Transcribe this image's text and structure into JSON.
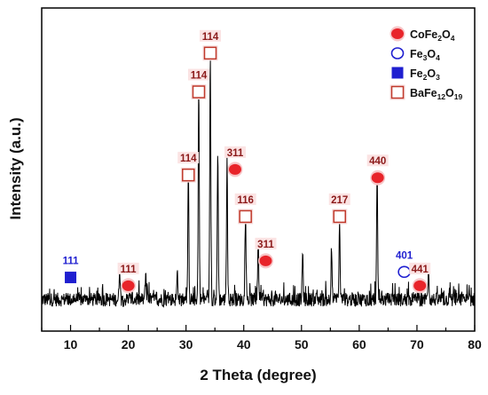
{
  "chart_data": {
    "type": "line",
    "title": "",
    "xlabel": "2 Theta (degree)",
    "ylabel": "Intensity (a.u.)",
    "xlim": [
      5,
      80
    ],
    "x_ticks": [
      10,
      20,
      30,
      40,
      50,
      60,
      70,
      80
    ],
    "y_ticks_labeled": false,
    "grid": false,
    "line_color": "#000000",
    "marker_colors": {
      "CoFe2O4": "#e8242a",
      "Fe3O4": "#1f1fd0",
      "Fe2O3": "#1f1fd0",
      "BaFe12O19": "#c0392b"
    },
    "peaks_relative_intensity": [
      {
        "x": 18.5,
        "y": 0.12
      },
      {
        "x": 23.0,
        "y": 0.09
      },
      {
        "x": 28.5,
        "y": 0.1
      },
      {
        "x": 30.4,
        "y": 0.45
      },
      {
        "x": 32.2,
        "y": 0.77
      },
      {
        "x": 34.2,
        "y": 0.88
      },
      {
        "x": 35.5,
        "y": 0.53
      },
      {
        "x": 37.1,
        "y": 0.5
      },
      {
        "x": 40.3,
        "y": 0.3
      },
      {
        "x": 42.5,
        "y": 0.2
      },
      {
        "x": 50.2,
        "y": 0.17
      },
      {
        "x": 55.2,
        "y": 0.2
      },
      {
        "x": 56.6,
        "y": 0.27
      },
      {
        "x": 63.1,
        "y": 0.45
      },
      {
        "x": 72.0,
        "y": 0.12
      }
    ],
    "annotations": [
      {
        "x": 10.0,
        "y": 0.12,
        "label": "111",
        "phase": "Fe2O3"
      },
      {
        "x": 20.0,
        "y": 0.09,
        "label": "111",
        "phase": "CoFe2O4"
      },
      {
        "x": 30.4,
        "y": 0.49,
        "label": "114",
        "phase": "BaFe12O19"
      },
      {
        "x": 32.2,
        "y": 0.79,
        "label": "114",
        "phase": "BaFe12O19"
      },
      {
        "x": 34.2,
        "y": 0.93,
        "label": "114",
        "phase": "BaFe12O19"
      },
      {
        "x": 38.5,
        "y": 0.51,
        "label": "311",
        "phase": "CoFe2O4"
      },
      {
        "x": 40.3,
        "y": 0.34,
        "label": "116",
        "phase": "BaFe12O19"
      },
      {
        "x": 43.8,
        "y": 0.18,
        "label": "311",
        "phase": "CoFe2O4"
      },
      {
        "x": 56.6,
        "y": 0.34,
        "label": "217",
        "phase": "BaFe12O19"
      },
      {
        "x": 63.2,
        "y": 0.48,
        "label": "440",
        "phase": "CoFe2O4"
      },
      {
        "x": 67.8,
        "y": 0.14,
        "label": "401",
        "phase": "Fe3O4"
      },
      {
        "x": 70.5,
        "y": 0.09,
        "label": "441",
        "phase": "CoFe2O4"
      }
    ],
    "legend": {
      "placement": "top-right",
      "items": [
        {
          "phase": "CoFe2O4",
          "parts": [
            {
              "t": "CoFe",
              "sub": false
            },
            {
              "t": "2",
              "sub": true
            },
            {
              "t": "O",
              "sub": false
            },
            {
              "t": "4",
              "sub": true
            }
          ],
          "marker": "filled-circle"
        },
        {
          "phase": "Fe3O4",
          "parts": [
            {
              "t": "Fe",
              "sub": false
            },
            {
              "t": "3",
              "sub": true
            },
            {
              "t": "O",
              "sub": false
            },
            {
              "t": "4",
              "sub": true
            }
          ],
          "marker": "open-circle"
        },
        {
          "phase": "Fe2O3",
          "parts": [
            {
              "t": "Fe",
              "sub": false
            },
            {
              "t": "2",
              "sub": true
            },
            {
              "t": "O",
              "sub": false
            },
            {
              "t": "3",
              "sub": true
            }
          ],
          "marker": "filled-square"
        },
        {
          "phase": "BaFe12O19",
          "parts": [
            {
              "t": "BaFe",
              "sub": false
            },
            {
              "t": "12",
              "sub": true
            },
            {
              "t": "O",
              "sub": false
            },
            {
              "t": "19",
              "sub": true
            }
          ],
          "marker": "open-square"
        }
      ]
    }
  }
}
